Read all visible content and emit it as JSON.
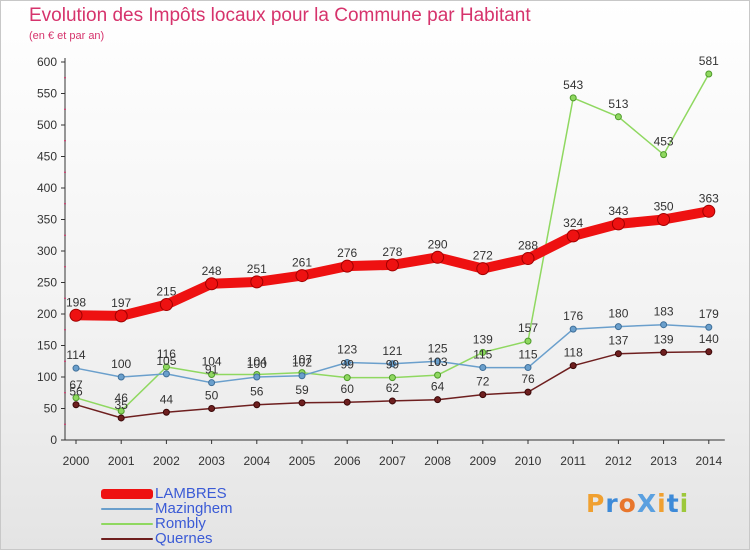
{
  "header": {
    "title": "Evolution des Impôts locaux pour la Commune par Habitant",
    "subtitle": "(en € et par an)"
  },
  "logo": {
    "text": "ProXiti",
    "letter_colors": [
      "#f0a030",
      "#3d8ad8",
      "#e8762c",
      "#5aa0e0",
      "#f0a030",
      "#3d8ad8",
      "#9dc83a"
    ]
  },
  "chart_data": {
    "type": "line",
    "title": "Evolution des Impôts locaux pour la Commune par Habitant",
    "subtitle": "(en € et par an)",
    "x": [
      "2000",
      "2001",
      "2002",
      "2003",
      "2004",
      "2005",
      "2006",
      "2007",
      "2008",
      "2009",
      "2010",
      "2011",
      "2012",
      "2013",
      "2014"
    ],
    "ylim": [
      0,
      600
    ],
    "yticks": [
      0,
      50,
      100,
      150,
      200,
      250,
      300,
      350,
      400,
      450,
      500,
      550,
      600
    ],
    "grid": false,
    "legend": "bottom-left",
    "series": [
      {
        "name": "LAMBRES",
        "color": "#ee1111",
        "values": [
          198,
          197,
          215,
          248,
          251,
          261,
          276,
          278,
          290,
          272,
          288,
          324,
          343,
          350,
          363
        ]
      },
      {
        "name": "Mazinghem",
        "color": "#6a9fcc",
        "values": [
          114,
          100,
          105,
          91,
          100,
          102,
          123,
          121,
          125,
          115,
          115,
          176,
          180,
          183,
          179
        ]
      },
      {
        "name": "Rombly",
        "color": "#8fd860",
        "values": [
          67,
          46,
          116,
          104,
          104,
          107,
          99,
          99,
          103,
          139,
          157,
          543,
          513,
          453,
          581
        ]
      },
      {
        "name": "Quernes",
        "color": "#6e1f1f",
        "values": [
          56,
          35,
          44,
          50,
          56,
          59,
          60,
          62,
          64,
          72,
          76,
          118,
          137,
          139,
          140
        ]
      }
    ]
  }
}
